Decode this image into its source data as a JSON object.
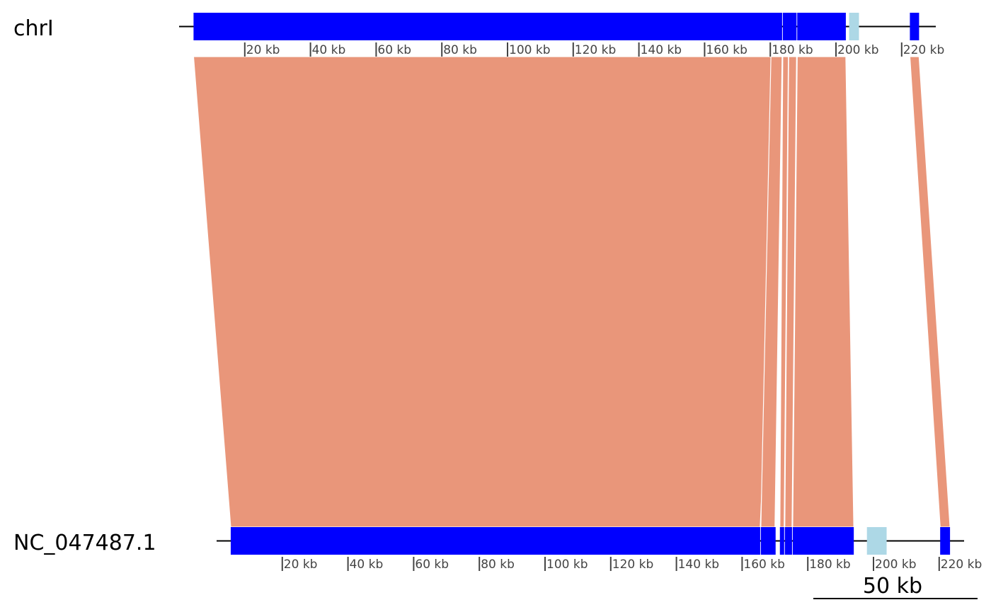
{
  "colors": {
    "block": "#0000ff",
    "block_light": "#add8e6",
    "link": "#e9967a",
    "line": "#000000",
    "tick": "#444444"
  },
  "sequences": [
    {
      "name": "chrI",
      "length_kb": 228,
      "ticks_kb": [
        20,
        40,
        60,
        80,
        100,
        120,
        140,
        160,
        180,
        200,
        220
      ],
      "tick_labels": [
        "20 kb",
        "40 kb",
        "60 kb",
        "80 kb",
        "100 kb",
        "120 kb",
        "140 kb",
        "160 kb",
        "180 kb",
        "200 kb",
        "220 kb"
      ],
      "blocks_kb": [
        {
          "start": 4.4,
          "end": 183.6,
          "shade": "dark"
        },
        {
          "start": 183.8,
          "end": 188.0,
          "shade": "dark"
        },
        {
          "start": 188.2,
          "end": 203.0,
          "shade": "dark"
        },
        {
          "start": 204.0,
          "end": 207.0,
          "shade": "light"
        },
        {
          "start": 222.5,
          "end": 225.3,
          "shade": "dark"
        }
      ]
    },
    {
      "name": "NC_047487.1",
      "length_kb": 228,
      "ticks_kb": [
        20,
        40,
        60,
        80,
        100,
        120,
        140,
        160,
        180,
        200,
        220
      ],
      "tick_labels": [
        "20 kb",
        "40 kb",
        "60 kb",
        "80 kb",
        "100 kb",
        "120 kb",
        "140 kb",
        "160 kb",
        "180 kb",
        "200 kb",
        "220 kb"
      ],
      "blocks_kb": [
        {
          "start": 4.3,
          "end": 165.5,
          "shade": "dark"
        },
        {
          "start": 165.7,
          "end": 170.2,
          "shade": "dark"
        },
        {
          "start": 171.5,
          "end": 172.8,
          "shade": "dark"
        },
        {
          "start": 173.0,
          "end": 175.2,
          "shade": "dark"
        },
        {
          "start": 175.4,
          "end": 194.0,
          "shade": "dark"
        },
        {
          "start": 198.0,
          "end": 204.0,
          "shade": "light"
        },
        {
          "start": 220.3,
          "end": 223.3,
          "shade": "dark"
        }
      ]
    }
  ],
  "links_kb": [
    {
      "top_start": 4.4,
      "top_end": 183.5,
      "bottom_start": 4.3,
      "bottom_end": 165.5
    },
    {
      "top_start": 180.2,
      "top_end": 183.6,
      "bottom_start": 165.7,
      "bottom_end": 170.0
    },
    {
      "top_start": 183.8,
      "top_end": 185.5,
      "bottom_start": 171.5,
      "bottom_end": 172.8
    },
    {
      "top_start": 185.6,
      "top_end": 188.0,
      "bottom_start": 173.0,
      "bottom_end": 175.2
    },
    {
      "top_start": 188.2,
      "top_end": 203.0,
      "bottom_start": 175.4,
      "bottom_end": 194.0
    },
    {
      "top_start": 222.5,
      "top_end": 225.3,
      "bottom_start": 220.3,
      "bottom_end": 223.3
    }
  ],
  "scale_bar": {
    "label": "50 kb",
    "length_kb": 50
  }
}
